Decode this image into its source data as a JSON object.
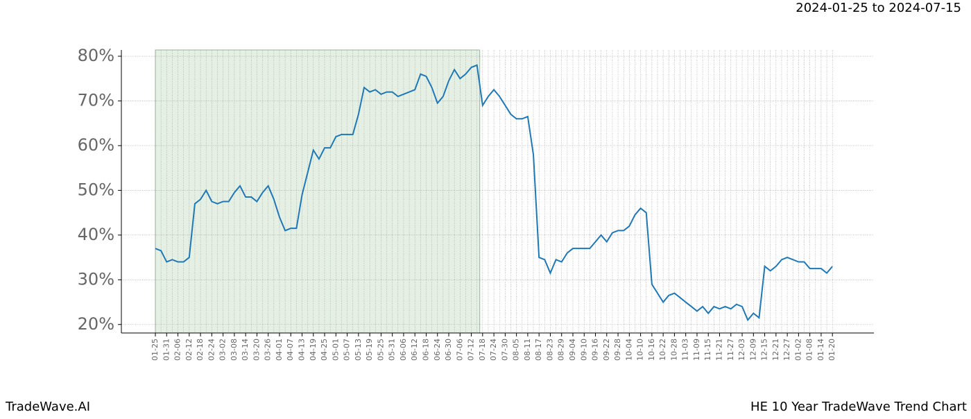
{
  "header": {
    "date_range": "2024-01-25 to 2024-07-15"
  },
  "footer": {
    "brand": "TradeWave.AI",
    "chart_name": "HE 10 Year TradeWave Trend Chart"
  },
  "chart_data": {
    "type": "line",
    "categories": [
      "01-25",
      null,
      "01-31",
      null,
      "02-06",
      null,
      "02-12",
      null,
      "02-18",
      null,
      "02-24",
      null,
      "03-02",
      null,
      "03-08",
      null,
      "03-14",
      null,
      "03-20",
      null,
      "03-26",
      null,
      "04-01",
      null,
      "04-07",
      null,
      "04-13",
      null,
      "04-19",
      null,
      "04-25",
      null,
      "05-01",
      null,
      "05-07",
      null,
      "05-13",
      null,
      "05-19",
      null,
      "05-25",
      null,
      "05-31",
      null,
      "06-06",
      null,
      "06-12",
      null,
      "06-18",
      null,
      "06-24",
      null,
      "06-30",
      null,
      "07-06",
      null,
      "07-12",
      null,
      "07-18",
      null,
      "07-24",
      null,
      "07-30",
      null,
      "08-05",
      null,
      "08-11",
      null,
      "08-17",
      null,
      "08-23",
      null,
      "08-29",
      null,
      "09-04",
      null,
      "09-10",
      null,
      "09-16",
      null,
      "09-22",
      null,
      "09-28",
      null,
      "10-04",
      null,
      "10-10",
      null,
      "10-16",
      null,
      "10-22",
      null,
      "10-28",
      null,
      "11-03",
      null,
      "11-09",
      null,
      "11-15",
      null,
      "11-21",
      null,
      "11-27",
      null,
      "12-03",
      null,
      "12-09",
      null,
      "12-15",
      null,
      "12-21",
      null,
      "12-27",
      null,
      "01-02",
      null,
      "01-08",
      null,
      "01-14",
      null,
      "01-20"
    ],
    "series": [
      {
        "color": "#1f77b4",
        "values": [
          37,
          36.5,
          34,
          34.5,
          34,
          34,
          35,
          47,
          48,
          50,
          47.5,
          47,
          47.5,
          47.5,
          49.5,
          51,
          48.5,
          48.5,
          47.5,
          49.5,
          51,
          48,
          44,
          41,
          41.5,
          41.5,
          49,
          54,
          59,
          57,
          59.5,
          59.5,
          62,
          62.5,
          62.5,
          62.5,
          67,
          73,
          72,
          72.5,
          71.5,
          72,
          72,
          71,
          71.5,
          72,
          72.5,
          76,
          75.5,
          73,
          69.5,
          71,
          74.5,
          77,
          75,
          76,
          77.5,
          78,
          69,
          71,
          72.5,
          71,
          69,
          67,
          66,
          66,
          66.5,
          58,
          35,
          34.5,
          31.5,
          34.5,
          34,
          36,
          37,
          37,
          37,
          37,
          38.5,
          40,
          38.5,
          40.5,
          41,
          41,
          42,
          44.5,
          46,
          45,
          29,
          27,
          25,
          26.5,
          27,
          26,
          25,
          24,
          23,
          24,
          22.5,
          24,
          23.5,
          24,
          23.5,
          24.5,
          24,
          21,
          22.5,
          21.5,
          33,
          32,
          33,
          34.5,
          35,
          34.5,
          34,
          34,
          32.5,
          32.5,
          32.5,
          31.5,
          33
        ]
      }
    ],
    "ylim": [
      18.1,
      81.4
    ],
    "yticks": [
      {
        "value": 20,
        "label": "20%"
      },
      {
        "value": 30,
        "label": "30%"
      },
      {
        "value": 40,
        "label": "40%"
      },
      {
        "value": 50,
        "label": "50%"
      },
      {
        "value": 60,
        "label": "60%"
      },
      {
        "value": 70,
        "label": "70%"
      },
      {
        "value": 80,
        "label": "80%"
      }
    ],
    "grid": true,
    "shade": {
      "from_index": 0,
      "to_index": 57,
      "color": "#e5f0e5"
    }
  }
}
